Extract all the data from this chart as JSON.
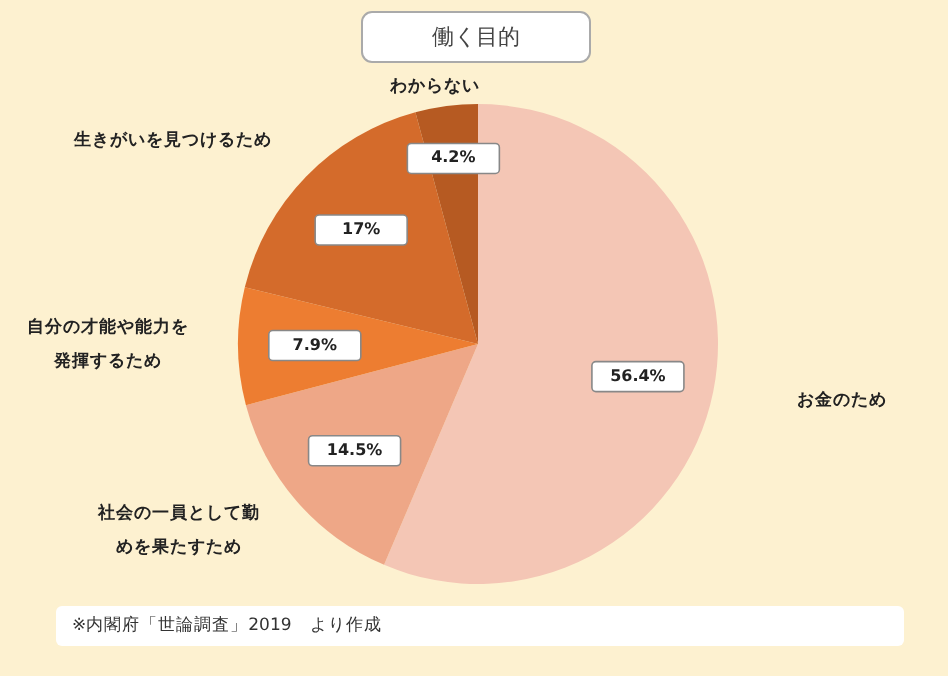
{
  "chart_data": {
    "type": "pie",
    "title": "働く目的",
    "categories": [
      "お金のため",
      "社会の一員として勤めを果たすため",
      "自分の才能や能力を発揮するため",
      "生きがいを見つけるため",
      "わからない"
    ],
    "values": [
      56.4,
      14.5,
      7.9,
      17,
      4.2
    ],
    "colors": [
      "#f4c6b5",
      "#eea787",
      "#ed7d31",
      "#d46b2b",
      "#b65a22"
    ],
    "value_labels": [
      "56.4%",
      "14.5%",
      "7.9%",
      "17%",
      "4.2%"
    ],
    "annotations": [
      "※内閣府「世論調査」2019　より作成"
    ]
  }
}
